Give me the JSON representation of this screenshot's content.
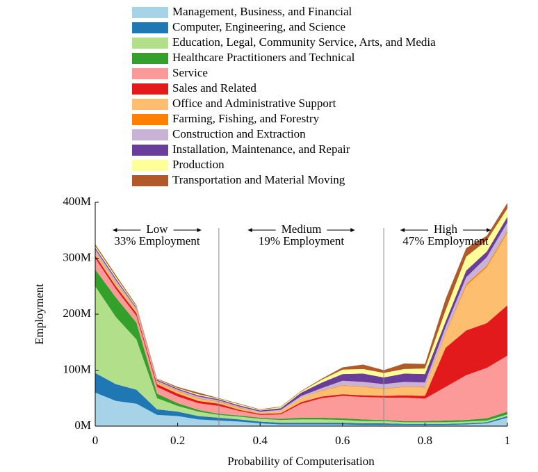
{
  "chart_data": {
    "type": "stacked_area",
    "xlabel": "Probability of Computerisation",
    "ylabel": "Employment",
    "x": [
      0,
      0.05,
      0.1,
      0.15,
      0.2,
      0.25,
      0.3,
      0.35,
      0.4,
      0.45,
      0.5,
      0.55,
      0.6,
      0.65,
      0.7,
      0.75,
      0.8,
      0.85,
      0.9,
      0.95,
      1
    ],
    "xlim": [
      0,
      1
    ],
    "xticks": [
      0,
      0.2,
      0.4,
      0.6,
      0.8,
      1
    ],
    "ylim": [
      0,
      400
    ],
    "yticks": [
      {
        "value": 0,
        "label": "0M"
      },
      {
        "value": 100,
        "label": "100M"
      },
      {
        "value": 200,
        "label": "200M"
      },
      {
        "value": 300,
        "label": "300M"
      },
      {
        "value": 400,
        "label": "400M"
      }
    ],
    "dividers": [
      0.3,
      0.7
    ],
    "regions": [
      {
        "label": "Low",
        "share": "33% Employment"
      },
      {
        "label": "Medium",
        "share": "19% Employment"
      },
      {
        "label": "High",
        "share": "47% Employment"
      }
    ],
    "series": [
      {
        "name": "Management, Business, and Financial",
        "color": "#a6d3e8",
        "values": [
          60,
          45,
          40,
          20,
          18,
          12,
          10,
          8,
          5,
          3,
          3,
          3,
          3,
          2,
          2,
          2,
          2,
          2,
          3,
          5,
          15
        ]
      },
      {
        "name": "Computer, Engineering, and Science",
        "color": "#1f78b4",
        "values": [
          35,
          30,
          25,
          10,
          8,
          6,
          5,
          4,
          3,
          3,
          3,
          3,
          3,
          3,
          3,
          2,
          2,
          2,
          2,
          2,
          3
        ]
      },
      {
        "name": "Education, Legal, Community Service, Arts, and Media",
        "color": "#b2df8a",
        "values": [
          155,
          120,
          90,
          20,
          10,
          8,
          5,
          5,
          5,
          5,
          6,
          6,
          5,
          4,
          4,
          3,
          3,
          3,
          3,
          3,
          3
        ]
      },
      {
        "name": "Healthcare Practitioners and Technical",
        "color": "#33a02c",
        "values": [
          30,
          35,
          30,
          8,
          5,
          3,
          2,
          2,
          2,
          2,
          3,
          3,
          3,
          3,
          2,
          2,
          2,
          3,
          3,
          4,
          5
        ]
      },
      {
        "name": "Service",
        "color": "#fb9a99",
        "values": [
          20,
          15,
          12,
          12,
          12,
          12,
          14,
          8,
          5,
          8,
          25,
          35,
          40,
          40,
          40,
          42,
          40,
          60,
          80,
          90,
          100
        ]
      },
      {
        "name": "Sales and Related",
        "color": "#e31a1c",
        "values": [
          5,
          5,
          5,
          5,
          5,
          4,
          4,
          2,
          2,
          2,
          3,
          3,
          3,
          3,
          3,
          4,
          5,
          70,
          80,
          80,
          90
        ]
      },
      {
        "name": "Office and Administrative Support",
        "color": "#fdbf6f",
        "values": [
          5,
          5,
          4,
          3,
          4,
          4,
          3,
          3,
          2,
          4,
          8,
          10,
          15,
          15,
          12,
          15,
          15,
          25,
          80,
          100,
          130
        ]
      },
      {
        "name": "Farming, Fishing, and Forestry",
        "color": "#ff7f00",
        "values": [
          1,
          1,
          1,
          1,
          1,
          1,
          1,
          1,
          0,
          0,
          0,
          1,
          1,
          1,
          1,
          1,
          1,
          2,
          3,
          3,
          3
        ]
      },
      {
        "name": "Construction and Extraction",
        "color": "#cab2d6",
        "values": [
          5,
          5,
          3,
          2,
          2,
          3,
          2,
          2,
          2,
          2,
          3,
          4,
          8,
          8,
          8,
          8,
          8,
          10,
          12,
          15,
          15
        ]
      },
      {
        "name": "Installation, Maintenance, and Repair",
        "color": "#6a3d9a",
        "values": [
          3,
          3,
          2,
          2,
          2,
          2,
          2,
          2,
          2,
          3,
          6,
          10,
          12,
          15,
          12,
          15,
          15,
          10,
          12,
          10,
          10
        ]
      },
      {
        "name": "Production",
        "color": "#ffff99",
        "values": [
          3,
          3,
          2,
          1,
          1,
          2,
          1,
          2,
          1,
          2,
          2,
          5,
          8,
          8,
          8,
          8,
          10,
          20,
          25,
          20,
          15
        ]
      },
      {
        "name": "Transportation and Material Moving",
        "color": "#b15928",
        "values": [
          3,
          3,
          2,
          1,
          2,
          3,
          1,
          1,
          1,
          1,
          1,
          2,
          4,
          8,
          5,
          10,
          8,
          20,
          15,
          8,
          10
        ]
      }
    ]
  }
}
